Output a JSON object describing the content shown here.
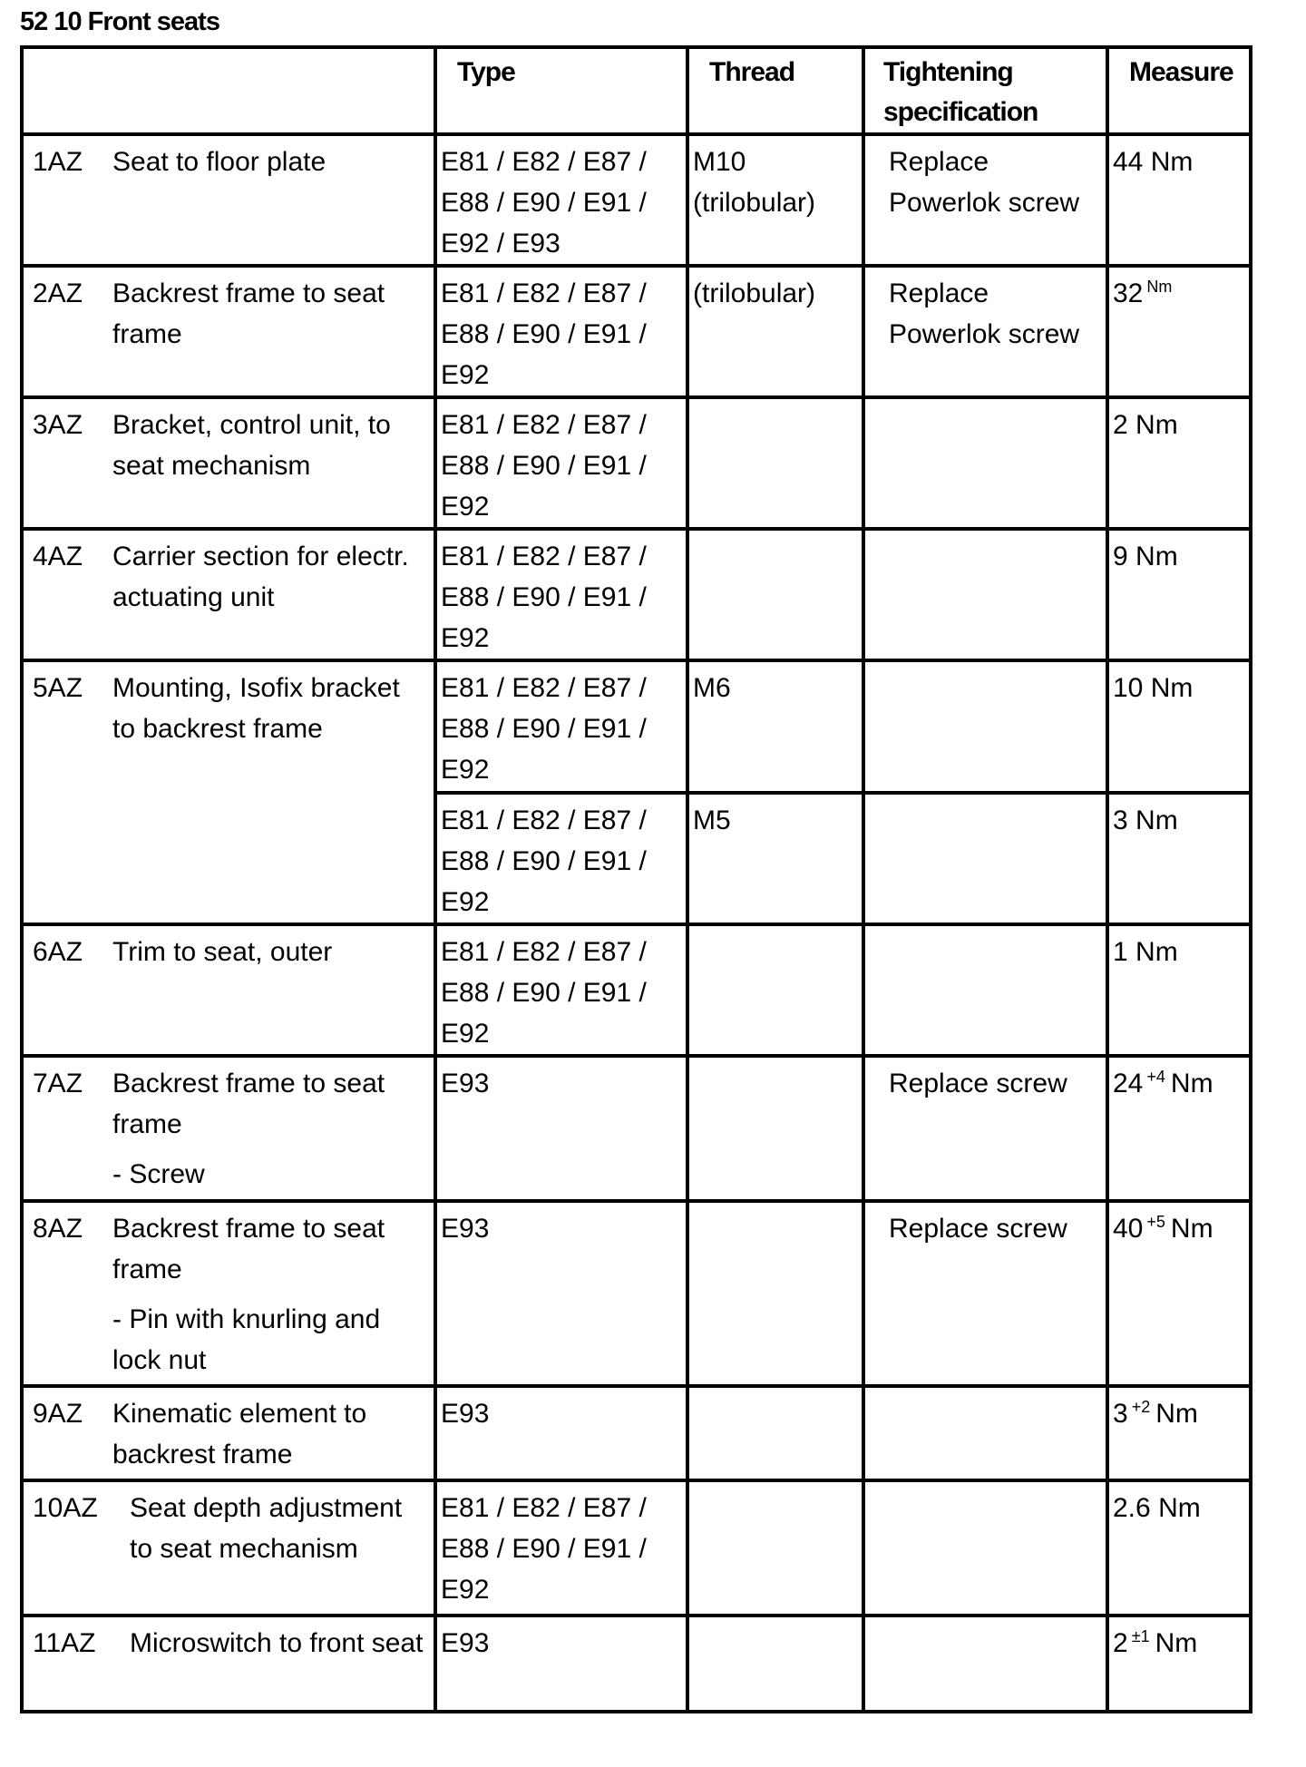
{
  "title": "52 10 Front seats",
  "headers": {
    "component": "",
    "type": "Type",
    "thread": "Thread",
    "spec": "Tightening specification",
    "measure": "Measure"
  },
  "rows": [
    {
      "id": "1AZ",
      "desc": "Seat to floor plate",
      "note": "",
      "type": "E81 / E82 / E87 / E88 / E90 / E91 / E92 / E93",
      "thread": "M10 (trilobular)",
      "spec": "Replace Powerlok screw",
      "measure": {
        "value": "44",
        "sup": "",
        "unit": "Nm"
      }
    },
    {
      "id": "2AZ",
      "desc": "Backrest frame to seat frame",
      "note": "",
      "type": "E81 / E82 / E87 / E88 / E90 / E91 / E92",
      "thread": "(trilobular)",
      "spec": "Replace Powerlok screw",
      "measure": {
        "value": "32",
        "sup": "Nm",
        "unit": ""
      }
    },
    {
      "id": "3AZ",
      "desc": "Bracket, control unit, to seat mechanism",
      "note": "",
      "type": "E81 / E82 / E87 / E88 / E90 / E91 / E92",
      "thread": "",
      "spec": "",
      "measure": {
        "value": "2",
        "sup": "",
        "unit": "Nm"
      }
    },
    {
      "id": "4AZ",
      "desc": "Carrier section for electr. actuating unit",
      "note": "",
      "type": "E81 / E82 / E87 / E88 / E90 / E91 / E92",
      "thread": "",
      "spec": "",
      "measure": {
        "value": "9",
        "sup": "",
        "unit": "Nm"
      }
    },
    {
      "id": "5AZ",
      "desc": "Mounting, Isofix bracket to backrest frame",
      "note": "",
      "type": "E81 / E82 / E87 / E88 / E90 / E91 / E92",
      "thread": "M6",
      "spec": "",
      "measure": {
        "value": "10",
        "sup": "",
        "unit": "Nm"
      }
    },
    {
      "id": "",
      "desc": "",
      "note": "",
      "type": "E81 / E82 / E87 / E88 / E90 / E91 / E92",
      "thread": "M5",
      "spec": "",
      "measure": {
        "value": "3",
        "sup": "",
        "unit": "Nm"
      }
    },
    {
      "id": "6AZ",
      "desc": "Trim to seat, outer",
      "note": "",
      "type": "E81 / E82 / E87 / E88 / E90 / E91 / E92",
      "thread": "",
      "spec": "",
      "measure": {
        "value": "1",
        "sup": "",
        "unit": "Nm"
      }
    },
    {
      "id": "7AZ",
      "desc": "Backrest frame to seat frame",
      "note": "- Screw",
      "type": "E93",
      "thread": "",
      "spec": "Replace screw",
      "measure": {
        "value": "24",
        "sup": "+4",
        "unit": "Nm"
      }
    },
    {
      "id": "8AZ",
      "desc": "Backrest frame to seat frame",
      "note": "- Pin with knurling and lock nut",
      "type": "E93",
      "thread": "",
      "spec": "Replace screw",
      "measure": {
        "value": "40",
        "sup": "+5",
        "unit": "Nm"
      }
    },
    {
      "id": "9AZ",
      "desc": "Kinematic element to backrest frame",
      "note": "",
      "type": "E93",
      "thread": "",
      "spec": "",
      "measure": {
        "value": "3",
        "sup": "+2",
        "unit": "Nm"
      }
    },
    {
      "id": "10AZ",
      "desc": "Seat depth adjustment to seat mechanism",
      "note": "",
      "type": "E81 / E82 / E87 / E88 / E90 / E91 / E92",
      "thread": "",
      "spec": "",
      "measure": {
        "value": "2.6",
        "sup": "",
        "unit": "Nm"
      }
    },
    {
      "id": "11AZ",
      "desc": "Microswitch to front seat",
      "note": "",
      "type": "E93",
      "thread": "",
      "spec": "",
      "measure": {
        "value": "2",
        "sup": "±1",
        "unit": "Nm"
      }
    }
  ]
}
